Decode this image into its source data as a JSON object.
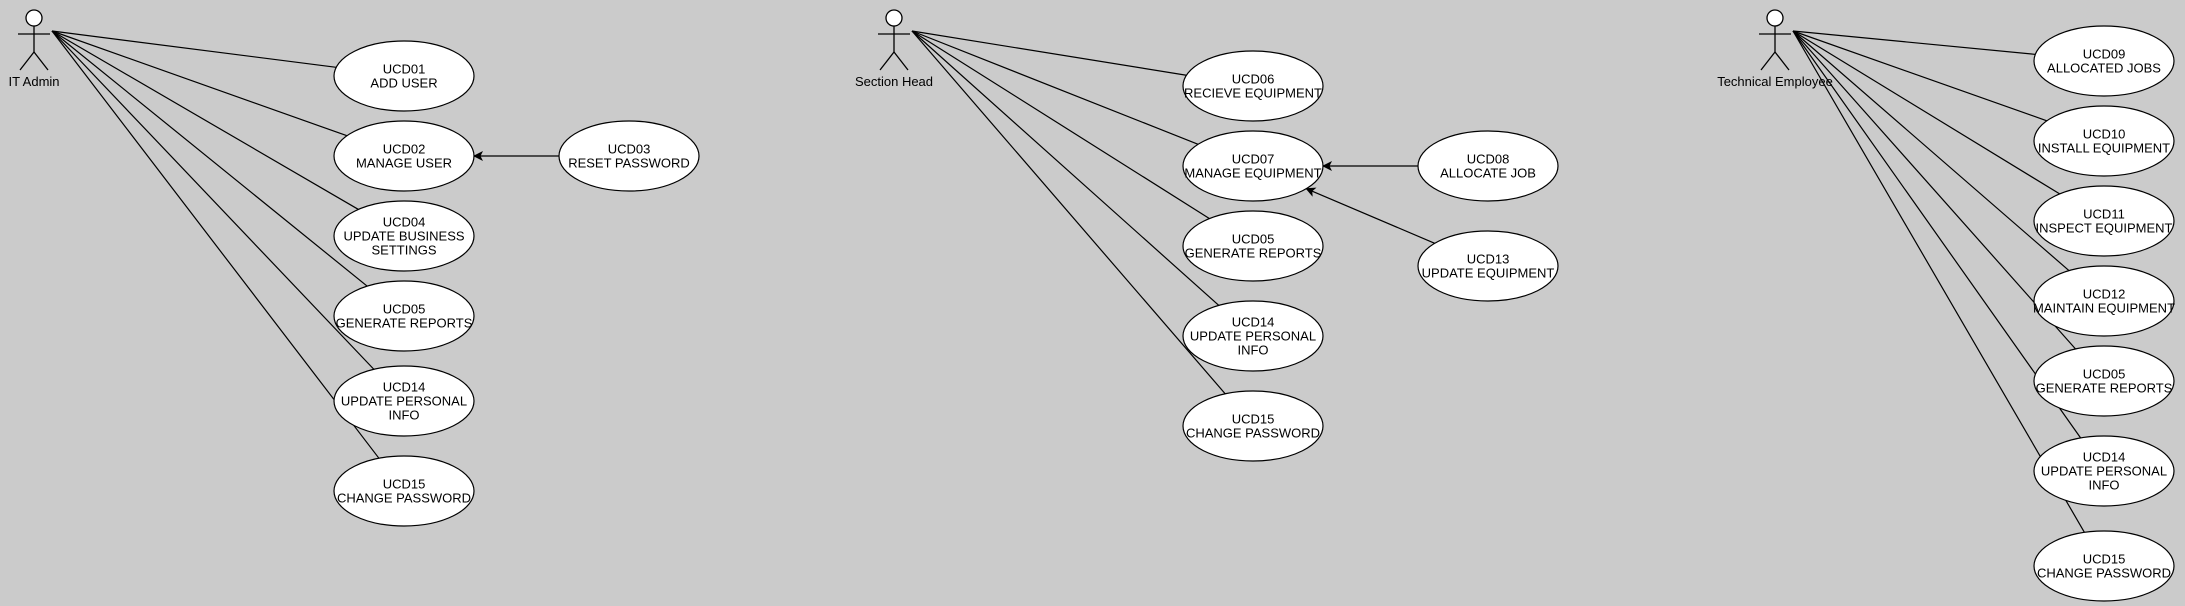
{
  "diagram": {
    "type": "use-case-diagram",
    "colors": {
      "background": "#cbcbcb",
      "ellipse_fill": "#ffffff",
      "stroke": "#000000"
    },
    "actors": [
      {
        "id": "it-admin",
        "label": "IT Admin"
      },
      {
        "id": "section-head",
        "label": "Section Head"
      },
      {
        "id": "technical-employee",
        "label": "Technical Employee"
      }
    ],
    "use_cases": [
      {
        "id": "a-ucd01",
        "code": "UCD01",
        "lines": [
          "ADD USER"
        ]
      },
      {
        "id": "a-ucd02",
        "code": "UCD02",
        "lines": [
          "MANAGE USER"
        ]
      },
      {
        "id": "a-ucd03",
        "code": "UCD03",
        "lines": [
          "RESET PASSWORD"
        ]
      },
      {
        "id": "a-ucd04",
        "code": "UCD04",
        "lines": [
          "UPDATE BUSINESS",
          "SETTINGS"
        ]
      },
      {
        "id": "a-ucd05",
        "code": "UCD05",
        "lines": [
          "GENERATE REPORTS"
        ]
      },
      {
        "id": "a-ucd14",
        "code": "UCD14",
        "lines": [
          "UPDATE PERSONAL",
          "INFO"
        ]
      },
      {
        "id": "a-ucd15",
        "code": "UCD15",
        "lines": [
          "CHANGE PASSWORD"
        ]
      },
      {
        "id": "s-ucd06",
        "code": "UCD06",
        "lines": [
          "RECIEVE EQUIPMENT"
        ]
      },
      {
        "id": "s-ucd07",
        "code": "UCD07",
        "lines": [
          "MANAGE EQUIPMENT"
        ]
      },
      {
        "id": "s-ucd08",
        "code": "UCD08",
        "lines": [
          "ALLOCATE JOB"
        ]
      },
      {
        "id": "s-ucd13",
        "code": "UCD13",
        "lines": [
          "UPDATE EQUIPMENT"
        ]
      },
      {
        "id": "s-ucd05",
        "code": "UCD05",
        "lines": [
          "GENERATE REPORTS"
        ]
      },
      {
        "id": "s-ucd14",
        "code": "UCD14",
        "lines": [
          "UPDATE PERSONAL",
          "INFO"
        ]
      },
      {
        "id": "s-ucd15",
        "code": "UCD15",
        "lines": [
          "CHANGE PASSWORD"
        ]
      },
      {
        "id": "t-ucd09",
        "code": "UCD09",
        "lines": [
          "ALLOCATED JOBS"
        ]
      },
      {
        "id": "t-ucd10",
        "code": "UCD10",
        "lines": [
          "INSTALL EQUIPMENT"
        ]
      },
      {
        "id": "t-ucd11",
        "code": "UCD11",
        "lines": [
          "INSPECT EQUIPMENT"
        ]
      },
      {
        "id": "t-ucd12",
        "code": "UCD12",
        "lines": [
          "MAINTAIN EQUIPMENT"
        ]
      },
      {
        "id": "t-ucd05",
        "code": "UCD05",
        "lines": [
          "GENERATE REPORTS"
        ]
      },
      {
        "id": "t-ucd14",
        "code": "UCD14",
        "lines": [
          "UPDATE PERSONAL",
          "INFO"
        ]
      },
      {
        "id": "t-ucd15",
        "code": "UCD15",
        "lines": [
          "CHANGE PASSWORD"
        ]
      }
    ],
    "associations": [
      {
        "from": "it-admin",
        "to": "a-ucd01"
      },
      {
        "from": "it-admin",
        "to": "a-ucd02"
      },
      {
        "from": "it-admin",
        "to": "a-ucd04"
      },
      {
        "from": "it-admin",
        "to": "a-ucd05"
      },
      {
        "from": "it-admin",
        "to": "a-ucd14"
      },
      {
        "from": "it-admin",
        "to": "a-ucd15"
      },
      {
        "from": "section-head",
        "to": "s-ucd06"
      },
      {
        "from": "section-head",
        "to": "s-ucd07"
      },
      {
        "from": "section-head",
        "to": "s-ucd05"
      },
      {
        "from": "section-head",
        "to": "s-ucd14"
      },
      {
        "from": "section-head",
        "to": "s-ucd15"
      },
      {
        "from": "technical-employee",
        "to": "t-ucd09"
      },
      {
        "from": "technical-employee",
        "to": "t-ucd10"
      },
      {
        "from": "technical-employee",
        "to": "t-ucd11"
      },
      {
        "from": "technical-employee",
        "to": "t-ucd12"
      },
      {
        "from": "technical-employee",
        "to": "t-ucd05"
      },
      {
        "from": "technical-employee",
        "to": "t-ucd14"
      },
      {
        "from": "technical-employee",
        "to": "t-ucd15"
      }
    ],
    "dependencies": [
      {
        "from": "a-ucd03",
        "to": "a-ucd02"
      },
      {
        "from": "s-ucd08",
        "to": "s-ucd07"
      },
      {
        "from": "s-ucd13",
        "to": "s-ucd07"
      }
    ]
  }
}
